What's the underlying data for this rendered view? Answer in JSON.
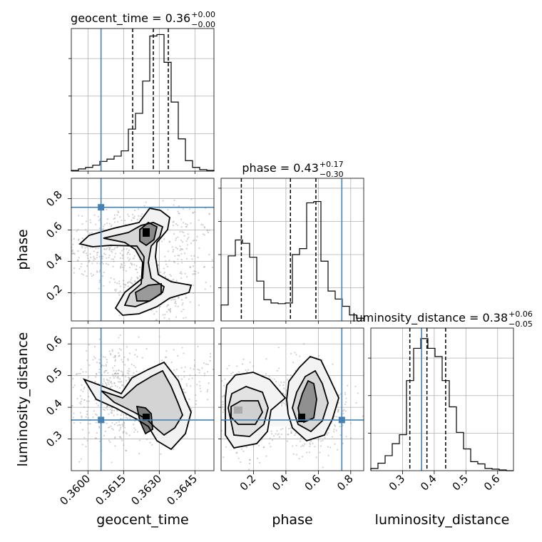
{
  "chart_data": {
    "type": "corner",
    "parameters": [
      "geocent_time",
      "phase",
      "luminosity_distance"
    ],
    "truths": {
      "geocent_time": 0.36055,
      "phase": 0.745,
      "luminosity_distance": 0.36
    },
    "panels": {
      "geocent_time": {
        "title": {
          "name": "geocent_time",
          "median": "0.36",
          "plus": "+0.00",
          "minus": "−0.00"
        },
        "xlim": [
          0.3593,
          0.3653
        ],
        "ticks": [
          {
            "v": 0.36,
            "label": "0.3600"
          },
          {
            "v": 0.3615,
            "label": "0.3615"
          },
          {
            "v": 0.363,
            "label": "0.3630"
          },
          {
            "v": 0.3645,
            "label": "0.3645"
          }
        ],
        "quantiles": [
          0.36188,
          0.36275,
          0.36338
        ],
        "bin_edges": [
          0.3593,
          0.3596,
          0.3599,
          0.3602,
          0.3605,
          0.3608,
          0.3611,
          0.3614,
          0.3617,
          0.362,
          0.3623,
          0.3626,
          0.3629,
          0.3632,
          0.3635,
          0.3638,
          0.3641,
          0.3644,
          0.3647,
          0.365,
          0.3653
        ],
        "counts": [
          1,
          3,
          5,
          8,
          13,
          16,
          20,
          27,
          56,
          77,
          120,
          180,
          182,
          145,
          92,
          43,
          14,
          5,
          2,
          1
        ],
        "ymax": 190,
        "ygrid": [
          50,
          100,
          150
        ]
      },
      "phase": {
        "title": {
          "name": "phase",
          "median": "0.43",
          "plus": "+0.17",
          "minus": "−0.30"
        },
        "xlim": [
          0.0,
          0.88
        ],
        "ticks": [
          {
            "v": 0.2,
            "label": "0.2"
          },
          {
            "v": 0.4,
            "label": "0.4"
          },
          {
            "v": 0.6,
            "label": "0.6"
          },
          {
            "v": 0.8,
            "label": "0.8"
          }
        ],
        "quantiles": [
          0.125,
          0.428,
          0.585
        ],
        "bin_edges": [
          0.0,
          0.044,
          0.088,
          0.132,
          0.176,
          0.22,
          0.264,
          0.308,
          0.352,
          0.396,
          0.44,
          0.484,
          0.528,
          0.572,
          0.616,
          0.66,
          0.704,
          0.748,
          0.792,
          0.836,
          0.88
        ],
        "counts": [
          24,
          98,
          122,
          117,
          96,
          60,
          32,
          27,
          26,
          27,
          100,
          109,
          178,
          180,
          90,
          45,
          33,
          22,
          9,
          4
        ],
        "ymax": 215,
        "ygrid": [
          50,
          100,
          150,
          200
        ]
      },
      "luminosity_distance": {
        "title": {
          "name": "luminosity_distance",
          "median": "0.38",
          "plus": "+0.06",
          "minus": "−0.05"
        },
        "xlim": [
          0.2,
          0.65
        ],
        "ticks": [
          {
            "v": 0.3,
            "label": "0.3"
          },
          {
            "v": 0.4,
            "label": "0.4"
          },
          {
            "v": 0.5,
            "label": "0.5"
          },
          {
            "v": 0.6,
            "label": "0.6"
          }
        ],
        "quantiles": [
          0.323,
          0.377,
          0.436
        ],
        "bin_edges": [
          0.2,
          0.2225,
          0.245,
          0.2675,
          0.29,
          0.3125,
          0.335,
          0.3575,
          0.38,
          0.4025,
          0.425,
          0.4475,
          0.47,
          0.4925,
          0.515,
          0.5375,
          0.56,
          0.5825,
          0.605,
          0.6275,
          0.65
        ],
        "counts": [
          3,
          10,
          20,
          36,
          48,
          120,
          163,
          176,
          163,
          152,
          120,
          85,
          51,
          29,
          12,
          9,
          3,
          2,
          1,
          0
        ],
        "ymax": 190,
        "ygrid": [
          50,
          100,
          150
        ]
      }
    },
    "ylims": {
      "phase": [
        0.02,
        0.93
      ],
      "luminosity_distance": [
        0.2,
        0.65
      ]
    },
    "yticks": {
      "phase": [
        {
          "v": 0.2,
          "label": "0.2"
        },
        {
          "v": 0.4,
          "label": "0.4"
        },
        {
          "v": 0.6,
          "label": "0.6"
        },
        {
          "v": 0.8,
          "label": "0.8"
        }
      ],
      "luminosity_distance": [
        {
          "v": 0.3,
          "label": "0.3"
        },
        {
          "v": 0.4,
          "label": "0.4"
        },
        {
          "v": 0.5,
          "label": "0.5"
        },
        {
          "v": 0.6,
          "label": "0.6"
        }
      ]
    },
    "labels": {
      "x": [
        "geocent_time",
        "phase",
        "luminosity_distance"
      ],
      "y": [
        "phase",
        "luminosity_distance"
      ]
    },
    "colors": {
      "truth": "#4682b4",
      "contour": "#000000",
      "scatter": "#9a9a9a",
      "grid": "#b0b0b0"
    }
  }
}
